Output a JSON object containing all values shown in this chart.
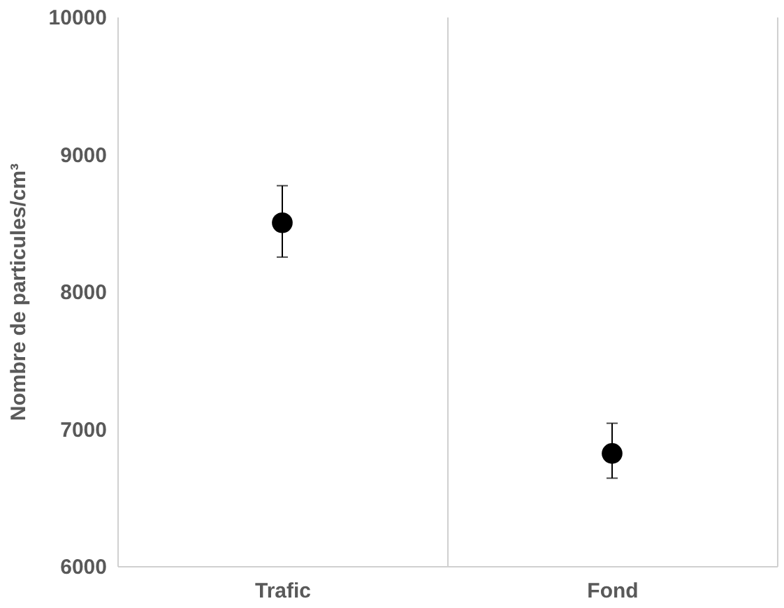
{
  "chart_data": {
    "type": "scatter",
    "ylabel": "Nombre de particules/cm³",
    "categories": [
      "Trafic",
      "Fond"
    ],
    "series": [
      {
        "color": "#000000",
        "values": [
          8500,
          6820
        ],
        "errors": [
          [
            8250,
            8770
          ],
          [
            6640,
            7040
          ]
        ]
      }
    ],
    "ylim": [
      6000,
      10000
    ],
    "yticks": [
      6000,
      7000,
      8000,
      9000,
      10000
    ],
    "grid": "x",
    "marker": "circle"
  }
}
